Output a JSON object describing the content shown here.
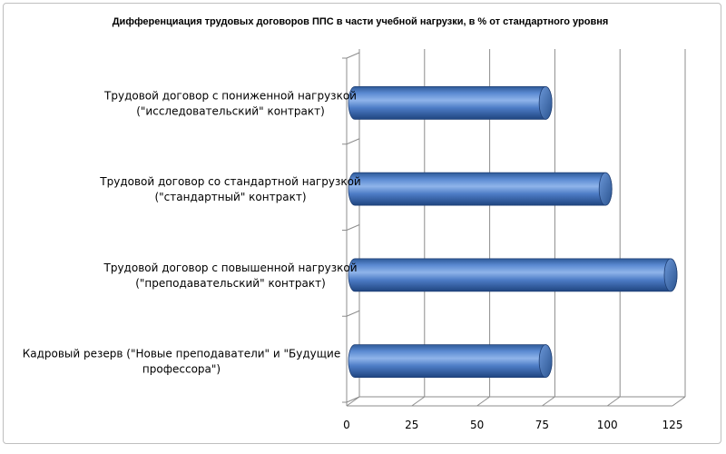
{
  "chart_data": {
    "type": "bar",
    "orientation": "horizontal",
    "style": "3d-cylinder",
    "title": "Дифференциация  трудовых договоров ППС в части учебной нагрузки, в % от стандартного уровня",
    "categories": [
      [
        "Трудовой договор с пониженной нагрузкой",
        "(\"исследовательский\" контракт)"
      ],
      [
        "Трудовой договор со стандартной нагрузкой",
        "(\"стандартный\" контракт)"
      ],
      [
        "Трудовой договор с повышенной нагрузкой",
        "(\"преподавательский\" контракт)"
      ],
      [
        "Кадровый резерв (\"Новые преподаватели\" и \"Будущие",
        "профессора\")"
      ]
    ],
    "values": [
      77,
      100,
      125,
      77
    ],
    "xlim": [
      0,
      125
    ],
    "xticks": [
      0,
      25,
      50,
      75,
      100,
      125
    ],
    "tick_labels": [
      "0",
      "25",
      "50",
      "75",
      "100",
      "125"
    ],
    "grid": true,
    "legend": "none",
    "bar_color": "#4a7cc4"
  }
}
